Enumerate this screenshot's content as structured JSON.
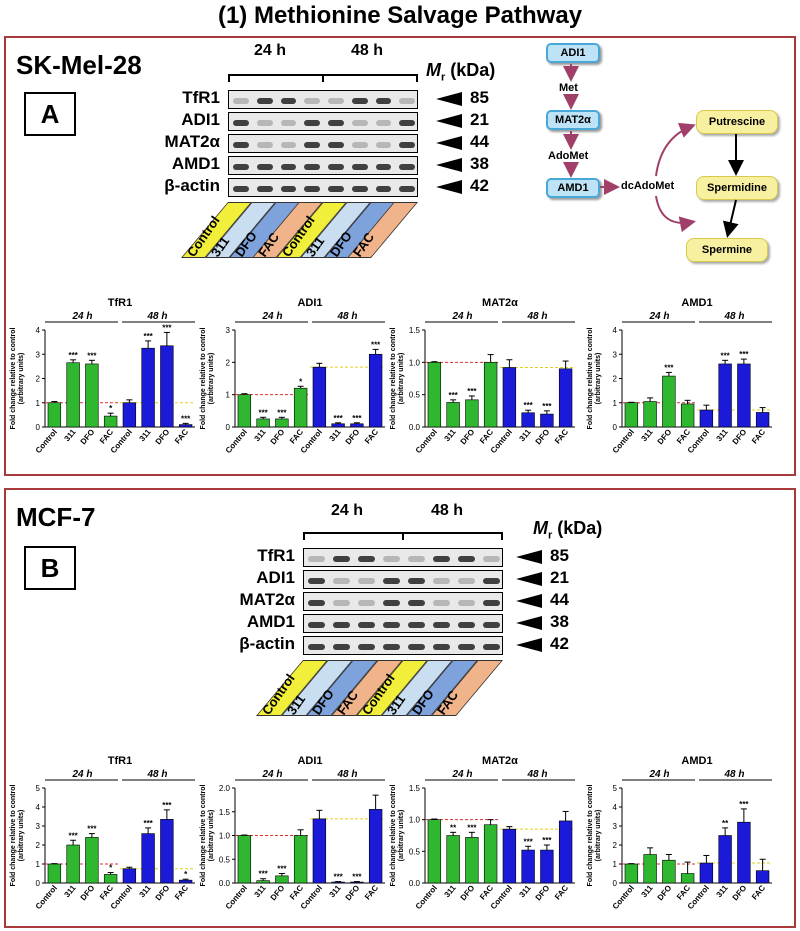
{
  "title": "(1) Methionine Salvage Pathway",
  "panels": [
    {
      "cell_line": "SK-Mel-28",
      "letter": "A",
      "timepoints": [
        "24 h",
        "48 h"
      ],
      "mr_label": "M",
      "mr_sub": "r",
      "mr_unit": "(kDa)",
      "proteins": [
        "TfR1",
        "ADI1",
        "MAT2α",
        "AMD1",
        "β-actin"
      ],
      "kda": [
        "85",
        "21",
        "44",
        "38",
        "42"
      ],
      "lanes": [
        "Control",
        "311",
        "DFO",
        "FAC",
        "Control",
        "311",
        "DFO",
        "FAC"
      ]
    },
    {
      "cell_line": "MCF-7",
      "letter": "B",
      "timepoints": [
        "24 h",
        "48 h"
      ],
      "mr_label": "M",
      "mr_sub": "r",
      "mr_unit": "(kDa)",
      "proteins": [
        "TfR1",
        "ADI1",
        "MAT2α",
        "AMD1",
        "β-actin"
      ],
      "kda": [
        "85",
        "21",
        "44",
        "38",
        "42"
      ],
      "lanes": [
        "Control",
        "311",
        "DFO",
        "FAC",
        "Control",
        "311",
        "DFO",
        "FAC"
      ]
    }
  ],
  "pathway": {
    "adi1": "ADI1",
    "met": "Met",
    "mat2a": "MAT2α",
    "adomet": "AdoMet",
    "amd1": "AMD1",
    "dcadomet": "dcAdoMet",
    "putrescine": "Putrescine",
    "spermidine": "Spermidine",
    "spermine": "Spermine"
  },
  "colors": {
    "green": "#2fb82f",
    "blue": "#1a1ad8",
    "panel_border": "#a83a3a",
    "control": "#f2ef3a",
    "chelator311": "#c9def0",
    "dfo": "#7ea3dc",
    "fac": "#f1b48a"
  },
  "chart_data": [
    {
      "type": "bar",
      "panel": "A",
      "title": "TfR1",
      "ylabel": "Fold change relative to control (arbitrary units)",
      "ylim": [
        0,
        4
      ],
      "yticks": [
        0,
        1,
        2,
        3,
        4
      ],
      "groups": [
        "24 h",
        "48 h"
      ],
      "categories": [
        "Control",
        "311",
        "DFO",
        "FAC",
        "Control",
        "311",
        "DFO",
        "FAC"
      ],
      "values": [
        1.0,
        2.65,
        2.6,
        0.45,
        1.0,
        3.25,
        3.35,
        0.1
      ],
      "errors": [
        0.05,
        0.12,
        0.15,
        0.12,
        0.12,
        0.3,
        0.55,
        0.05
      ],
      "sig": [
        "",
        "***",
        "***",
        "*",
        "",
        "***",
        "***",
        "***"
      ],
      "ref_24": 1.0,
      "ref_48": 1.0
    },
    {
      "type": "bar",
      "panel": "A",
      "title": "ADI1",
      "ylabel": "Fold change relative to control (arbitrary units)",
      "ylim": [
        0,
        3
      ],
      "yticks": [
        0,
        1,
        2,
        3
      ],
      "groups": [
        "24 h",
        "48 h"
      ],
      "categories": [
        "Control",
        "311",
        "DFO",
        "FAC",
        "Control",
        "311",
        "DFO",
        "FAC"
      ],
      "values": [
        1.0,
        0.25,
        0.25,
        1.2,
        1.85,
        0.1,
        0.1,
        2.25
      ],
      "errors": [
        0.03,
        0.05,
        0.05,
        0.06,
        0.12,
        0.03,
        0.03,
        0.15
      ],
      "sig": [
        "",
        "***",
        "***",
        "*",
        "",
        "***",
        "***",
        "***"
      ],
      "ref_24": 1.0,
      "ref_48": 1.85
    },
    {
      "type": "bar",
      "panel": "A",
      "title": "MAT2α",
      "ylabel": "Fold change relative to control (arbitrary units)",
      "ylim": [
        0,
        1.5
      ],
      "yticks": [
        0.0,
        0.5,
        1.0,
        1.5
      ],
      "groups": [
        "24 h",
        "48 h"
      ],
      "categories": [
        "Control",
        "311",
        "DFO",
        "FAC",
        "Control",
        "311",
        "DFO",
        "FAC"
      ],
      "values": [
        1.0,
        0.38,
        0.42,
        1.0,
        0.92,
        0.22,
        0.2,
        0.9
      ],
      "errors": [
        0.01,
        0.04,
        0.06,
        0.12,
        0.12,
        0.04,
        0.05,
        0.12
      ],
      "sig": [
        "",
        "***",
        "***",
        "",
        "",
        "***",
        "***",
        ""
      ],
      "ref_24": 1.0,
      "ref_48": 0.92
    },
    {
      "type": "bar",
      "panel": "A",
      "title": "AMD1",
      "ylabel": "Fold change relative to control (arbitrary units)",
      "ylim": [
        0,
        4
      ],
      "yticks": [
        0,
        1,
        2,
        3,
        4
      ],
      "groups": [
        "24 h",
        "48 h"
      ],
      "categories": [
        "Control",
        "311",
        "DFO",
        "FAC",
        "Control",
        "311",
        "DFO",
        "FAC"
      ],
      "values": [
        1.0,
        1.05,
        2.1,
        0.95,
        0.7,
        2.6,
        2.6,
        0.6
      ],
      "errors": [
        0.02,
        0.15,
        0.15,
        0.15,
        0.2,
        0.15,
        0.2,
        0.2
      ],
      "sig": [
        "",
        "",
        "***",
        "",
        "",
        "***",
        "***",
        ""
      ],
      "ref_24": 1.0,
      "ref_48": 0.7
    },
    {
      "type": "bar",
      "panel": "B",
      "title": "TfR1",
      "ylabel": "Fold change relative to control (arbitrary units)",
      "ylim": [
        0,
        5
      ],
      "yticks": [
        0,
        1,
        2,
        3,
        4,
        5
      ],
      "groups": [
        "24 h",
        "48 h"
      ],
      "categories": [
        "Control",
        "311",
        "DFO",
        "FAC",
        "Control",
        "311",
        "DFO",
        "FAC"
      ],
      "values": [
        1.0,
        2.0,
        2.4,
        0.45,
        0.75,
        2.6,
        3.35,
        0.15
      ],
      "errors": [
        0.02,
        0.25,
        0.2,
        0.1,
        0.08,
        0.3,
        0.5,
        0.05
      ],
      "sig": [
        "",
        "***",
        "***",
        "*",
        "",
        "***",
        "***",
        "*"
      ],
      "ref_24": 1.0,
      "ref_48": 0.75
    },
    {
      "type": "bar",
      "panel": "B",
      "title": "ADI1",
      "ylabel": "Fold change relative to control (arbitrary units)",
      "ylim": [
        0,
        2.0
      ],
      "yticks": [
        0.0,
        0.5,
        1.0,
        1.5,
        2.0
      ],
      "groups": [
        "24 h",
        "48 h"
      ],
      "categories": [
        "Control",
        "311",
        "DFO",
        "FAC",
        "Control",
        "311",
        "DFO",
        "FAC"
      ],
      "values": [
        1.0,
        0.05,
        0.15,
        1.0,
        1.35,
        0.02,
        0.02,
        1.55
      ],
      "errors": [
        0.01,
        0.04,
        0.05,
        0.12,
        0.18,
        0.01,
        0.01,
        0.3
      ],
      "sig": [
        "",
        "***",
        "***",
        "",
        "",
        "***",
        "***",
        ""
      ],
      "ref_24": 1.0,
      "ref_48": 1.35
    },
    {
      "type": "bar",
      "panel": "B",
      "title": "MAT2α",
      "ylabel": "Fold change relative to control (arbitrary units)",
      "ylim": [
        0,
        1.5
      ],
      "yticks": [
        0.0,
        0.5,
        1.0,
        1.5
      ],
      "groups": [
        "24 h",
        "48 h"
      ],
      "categories": [
        "Control",
        "311",
        "DFO",
        "FAC",
        "Control",
        "311",
        "DFO",
        "FAC"
      ],
      "values": [
        1.0,
        0.75,
        0.72,
        0.92,
        0.85,
        0.52,
        0.52,
        0.98
      ],
      "errors": [
        0.01,
        0.05,
        0.08,
        0.08,
        0.04,
        0.06,
        0.08,
        0.15
      ],
      "sig": [
        "",
        "**",
        "***",
        "",
        "",
        "***",
        "***",
        ""
      ],
      "ref_24": 1.0,
      "ref_48": 0.85
    },
    {
      "type": "bar",
      "panel": "B",
      "title": "AMD1",
      "ylabel": "Fold change relative to control (arbitrary units)",
      "ylim": [
        0,
        5
      ],
      "yticks": [
        0,
        1,
        2,
        3,
        4,
        5
      ],
      "groups": [
        "24 h",
        "48 h"
      ],
      "categories": [
        "Control",
        "311",
        "DFO",
        "FAC",
        "Control",
        "311",
        "DFO",
        "FAC"
      ],
      "values": [
        1.0,
        1.5,
        1.2,
        0.5,
        1.05,
        2.5,
        3.2,
        0.65
      ],
      "errors": [
        0.02,
        0.35,
        0.3,
        0.6,
        0.4,
        0.4,
        0.7,
        0.6
      ],
      "sig": [
        "",
        "",
        "",
        "",
        "",
        "**",
        "***",
        ""
      ],
      "ref_24": 1.0,
      "ref_48": 1.05
    }
  ]
}
